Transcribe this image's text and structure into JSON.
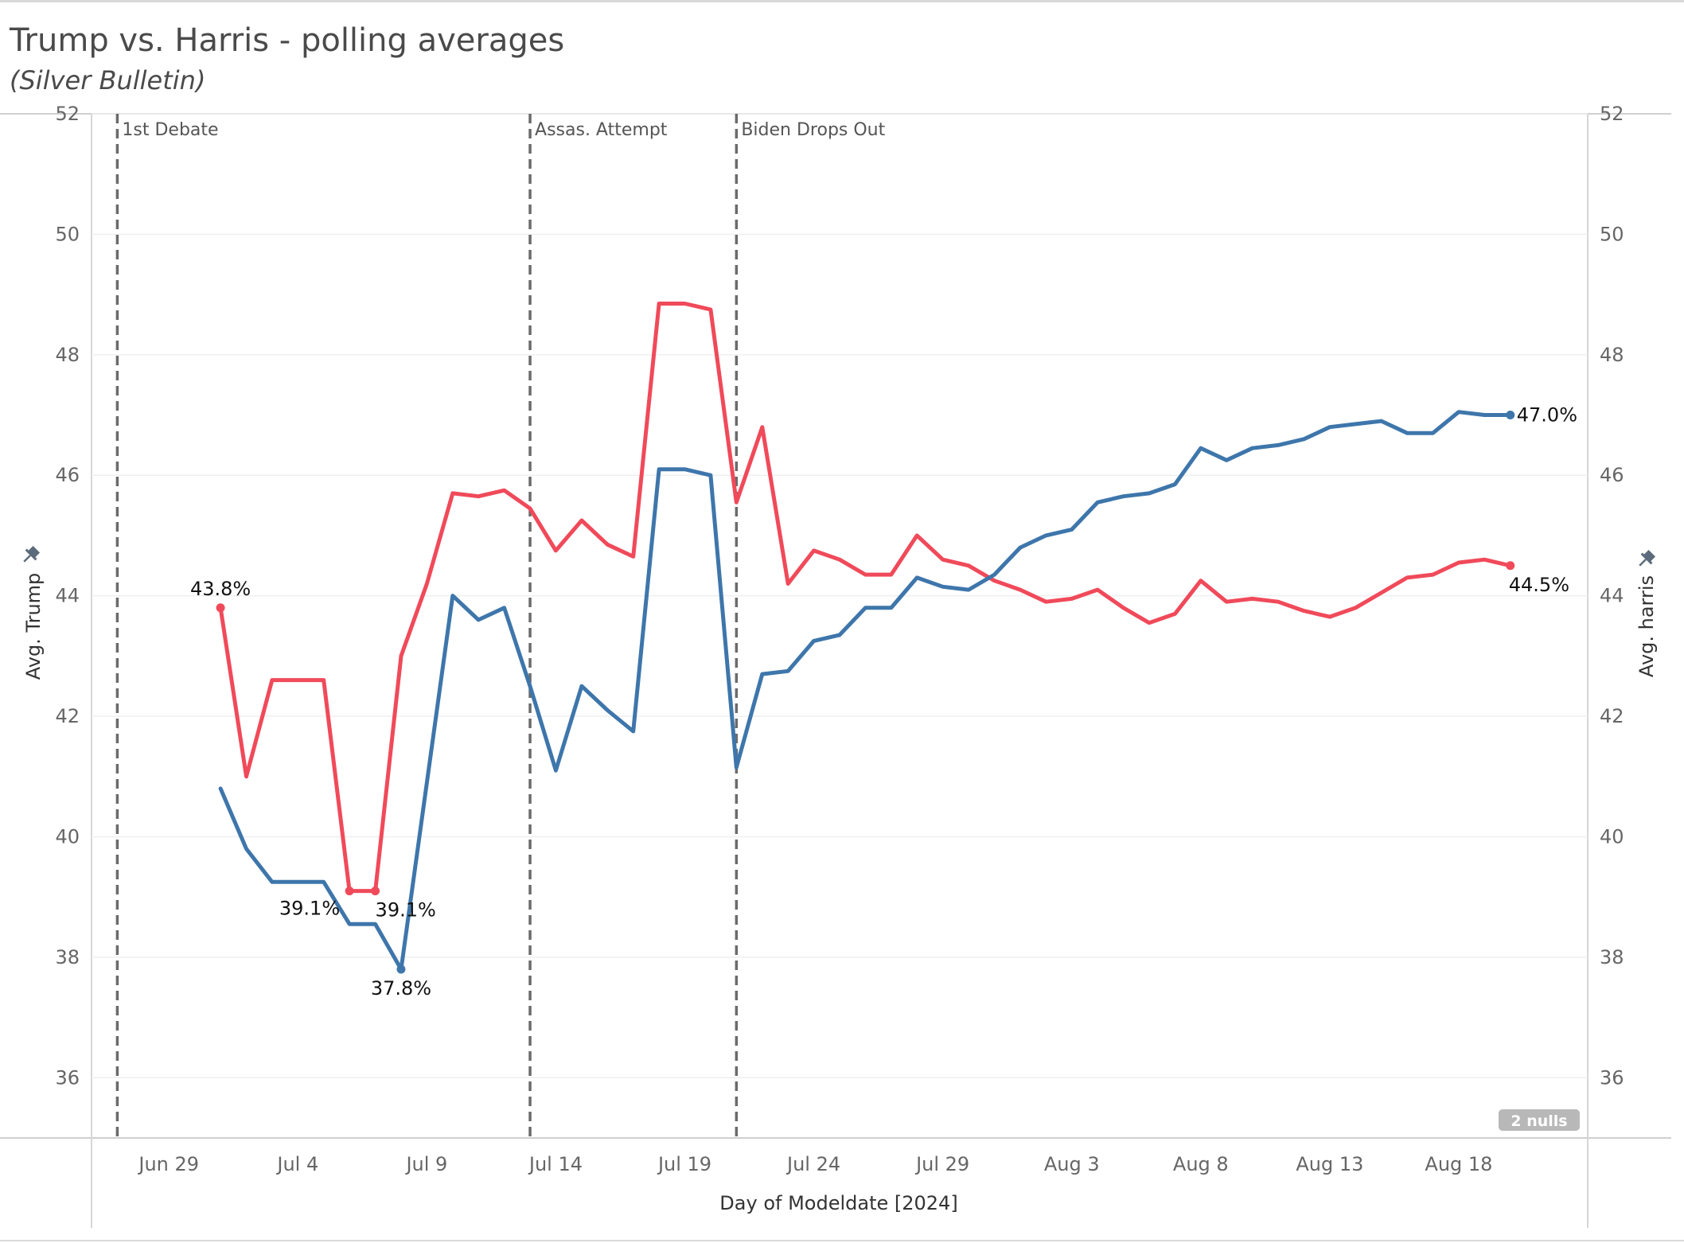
{
  "title": "Trump vs. Harris - polling averages",
  "subtitle": "(Silver Bulletin)",
  "chart_data": {
    "type": "line",
    "title": "Trump vs. Harris - polling averages",
    "subtitle": "(Silver Bulletin)",
    "xlabel": "Day of Modeldate [2024]",
    "ylabel_left": "Avg. Trump",
    "ylabel_right": "Avg. harris",
    "ylim": [
      35,
      52
    ],
    "yticks": [
      36,
      38,
      40,
      42,
      44,
      46,
      48,
      50,
      52
    ],
    "xlim": [
      "2024-06-26",
      "2024-08-23"
    ],
    "xticks": [
      {
        "date": "2024-06-29",
        "label": "Jun 29"
      },
      {
        "date": "2024-07-04",
        "label": "Jul 4"
      },
      {
        "date": "2024-07-09",
        "label": "Jul 9"
      },
      {
        "date": "2024-07-14",
        "label": "Jul 14"
      },
      {
        "date": "2024-07-19",
        "label": "Jul 19"
      },
      {
        "date": "2024-07-24",
        "label": "Jul 24"
      },
      {
        "date": "2024-07-29",
        "label": "Jul 29"
      },
      {
        "date": "2024-08-03",
        "label": "Aug 3"
      },
      {
        "date": "2024-08-08",
        "label": "Aug 8"
      },
      {
        "date": "2024-08-13",
        "label": "Aug 13"
      },
      {
        "date": "2024-08-18",
        "label": "Aug 18"
      }
    ],
    "grid": true,
    "legend": "none",
    "annotations": [
      {
        "date": "2024-06-27",
        "label": "1st Debate"
      },
      {
        "date": "2024-07-13",
        "label": "Assas. Attempt"
      },
      {
        "date": "2024-07-21",
        "label": "Biden Drops Out"
      }
    ],
    "nulls_indicator": "2 nulls",
    "series": [
      {
        "color": "#f04a5a",
        "axis": "left",
        "points": [
          [
            "2024-07-01",
            43.8
          ],
          [
            "2024-07-02",
            41.0
          ],
          [
            "2024-07-03",
            42.6
          ],
          [
            "2024-07-04",
            42.6
          ],
          [
            "2024-07-05",
            42.6
          ],
          [
            "2024-07-06",
            39.1
          ],
          [
            "2024-07-07",
            39.1
          ],
          [
            "2024-07-08",
            43.0
          ],
          [
            "2024-07-09",
            44.2
          ],
          [
            "2024-07-10",
            45.7
          ],
          [
            "2024-07-11",
            45.65
          ],
          [
            "2024-07-12",
            45.75
          ],
          [
            "2024-07-13",
            45.45
          ],
          [
            "2024-07-14",
            44.75
          ],
          [
            "2024-07-15",
            45.25
          ],
          [
            "2024-07-16",
            44.85
          ],
          [
            "2024-07-17",
            44.65
          ],
          [
            "2024-07-18",
            48.85
          ],
          [
            "2024-07-19",
            48.85
          ],
          [
            "2024-07-20",
            48.75
          ],
          [
            "2024-07-21",
            45.55
          ],
          [
            "2024-07-22",
            46.8
          ],
          [
            "2024-07-23",
            44.2
          ],
          [
            "2024-07-24",
            44.75
          ],
          [
            "2024-07-25",
            44.6
          ],
          [
            "2024-07-26",
            44.35
          ],
          [
            "2024-07-27",
            44.35
          ],
          [
            "2024-07-28",
            45.0
          ],
          [
            "2024-07-29",
            44.6
          ],
          [
            "2024-07-30",
            44.5
          ],
          [
            "2024-07-31",
            44.25
          ],
          [
            "2024-08-01",
            44.1
          ],
          [
            "2024-08-02",
            43.9
          ],
          [
            "2024-08-03",
            43.95
          ],
          [
            "2024-08-04",
            44.1
          ],
          [
            "2024-08-05",
            43.8
          ],
          [
            "2024-08-06",
            43.55
          ],
          [
            "2024-08-07",
            43.7
          ],
          [
            "2024-08-08",
            44.25
          ],
          [
            "2024-08-09",
            43.9
          ],
          [
            "2024-08-10",
            43.95
          ],
          [
            "2024-08-11",
            43.9
          ],
          [
            "2024-08-12",
            43.75
          ],
          [
            "2024-08-13",
            43.65
          ],
          [
            "2024-08-14",
            43.8
          ],
          [
            "2024-08-15",
            44.05
          ],
          [
            "2024-08-16",
            44.3
          ],
          [
            "2024-08-17",
            44.35
          ],
          [
            "2024-08-18",
            44.55
          ],
          [
            "2024-08-19",
            44.6
          ],
          [
            "2024-08-20",
            44.5
          ]
        ]
      },
      {
        "color": "#3e76ab",
        "axis": "right",
        "points": [
          [
            "2024-07-01",
            40.8
          ],
          [
            "2024-07-02",
            39.8
          ],
          [
            "2024-07-03",
            39.25
          ],
          [
            "2024-07-04",
            39.25
          ],
          [
            "2024-07-05",
            39.25
          ],
          [
            "2024-07-06",
            38.55
          ],
          [
            "2024-07-07",
            38.55
          ],
          [
            "2024-07-08",
            37.8
          ],
          [
            "2024-07-09",
            40.9
          ],
          [
            "2024-07-10",
            44.0
          ],
          [
            "2024-07-11",
            43.6
          ],
          [
            "2024-07-12",
            43.8
          ],
          [
            "2024-07-13",
            42.5
          ],
          [
            "2024-07-14",
            41.1
          ],
          [
            "2024-07-15",
            42.5
          ],
          [
            "2024-07-16",
            42.1
          ],
          [
            "2024-07-17",
            41.75
          ],
          [
            "2024-07-18",
            46.1
          ],
          [
            "2024-07-19",
            46.1
          ],
          [
            "2024-07-20",
            46.0
          ],
          [
            "2024-07-21",
            41.15
          ],
          [
            "2024-07-22",
            42.7
          ],
          [
            "2024-07-23",
            42.75
          ],
          [
            "2024-07-24",
            43.25
          ],
          [
            "2024-07-25",
            43.35
          ],
          [
            "2024-07-26",
            43.8
          ],
          [
            "2024-07-27",
            43.8
          ],
          [
            "2024-07-28",
            44.3
          ],
          [
            "2024-07-29",
            44.15
          ],
          [
            "2024-07-30",
            44.1
          ],
          [
            "2024-07-31",
            44.35
          ],
          [
            "2024-08-01",
            44.8
          ],
          [
            "2024-08-02",
            45.0
          ],
          [
            "2024-08-03",
            45.1
          ],
          [
            "2024-08-04",
            45.55
          ],
          [
            "2024-08-05",
            45.65
          ],
          [
            "2024-08-06",
            45.7
          ],
          [
            "2024-08-07",
            45.85
          ],
          [
            "2024-08-08",
            46.45
          ],
          [
            "2024-08-09",
            46.25
          ],
          [
            "2024-08-10",
            46.45
          ],
          [
            "2024-08-11",
            46.5
          ],
          [
            "2024-08-12",
            46.6
          ],
          [
            "2024-08-13",
            46.8
          ],
          [
            "2024-08-14",
            46.85
          ],
          [
            "2024-08-15",
            46.9
          ],
          [
            "2024-08-16",
            46.7
          ],
          [
            "2024-08-17",
            46.7
          ],
          [
            "2024-08-18",
            47.05
          ],
          [
            "2024-08-19",
            47.0
          ],
          [
            "2024-08-20",
            47.0
          ]
        ]
      }
    ],
    "data_labels": [
      {
        "text": "43.8%",
        "date": "2024-07-01",
        "value": 43.8,
        "series": 0,
        "pos": "above",
        "marker": true
      },
      {
        "text": "39.1%",
        "date": "2024-07-06",
        "value": 39.1,
        "series": 0,
        "pos": "below-left",
        "marker": true
      },
      {
        "text": "39.1%",
        "date": "2024-07-07",
        "value": 39.1,
        "series": 0,
        "pos": "below-right",
        "marker": true
      },
      {
        "text": "37.8%",
        "date": "2024-07-08",
        "value": 37.8,
        "series": 1,
        "pos": "below",
        "marker": true
      },
      {
        "text": "47.0%",
        "date": "2024-08-20",
        "value": 47.0,
        "series": 1,
        "pos": "right",
        "marker": true
      },
      {
        "text": "44.5%",
        "date": "2024-08-20",
        "value": 44.5,
        "series": 0,
        "pos": "below-right",
        "marker": true
      }
    ]
  }
}
